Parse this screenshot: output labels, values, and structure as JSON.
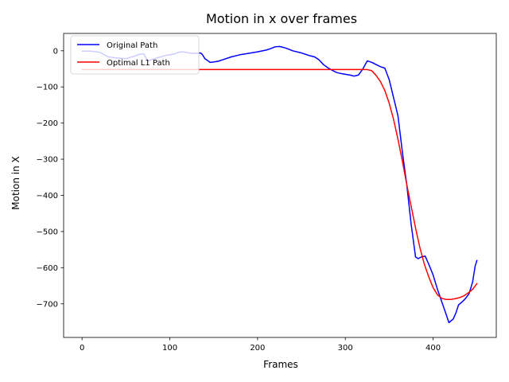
{
  "chart_data": {
    "type": "line",
    "title": "Motion in x over frames",
    "xlabel": "Frames",
    "ylabel": "Motion in X",
    "xlim": [
      -21,
      472
    ],
    "ylim": [
      -793,
      48
    ],
    "xticks": [
      0,
      100,
      200,
      300,
      400
    ],
    "yticks": [
      0,
      -100,
      -200,
      -300,
      -400,
      -500,
      -600,
      -700
    ],
    "grid": false,
    "legend_position": "upper-left",
    "series": [
      {
        "name": "Original Path",
        "color": "#0000ff",
        "points": [
          [
            0,
            -1
          ],
          [
            10,
            -1
          ],
          [
            20,
            -4
          ],
          [
            30,
            -17
          ],
          [
            40,
            -20
          ],
          [
            50,
            -22
          ],
          [
            55,
            -18
          ],
          [
            60,
            -15
          ],
          [
            65,
            -10
          ],
          [
            70,
            -8
          ],
          [
            75,
            -28
          ],
          [
            80,
            -24
          ],
          [
            85,
            -20
          ],
          [
            90,
            -17
          ],
          [
            95,
            -13
          ],
          [
            100,
            -11
          ],
          [
            105,
            -9
          ],
          [
            110,
            -4
          ],
          [
            115,
            -3
          ],
          [
            120,
            -5
          ],
          [
            125,
            -7
          ],
          [
            130,
            -7
          ],
          [
            135,
            -6
          ],
          [
            137,
            -10
          ],
          [
            140,
            -22
          ],
          [
            146,
            -32
          ],
          [
            150,
            -31
          ],
          [
            155,
            -29
          ],
          [
            160,
            -25
          ],
          [
            170,
            -17
          ],
          [
            180,
            -11
          ],
          [
            190,
            -7
          ],
          [
            200,
            -3
          ],
          [
            210,
            2
          ],
          [
            215,
            6
          ],
          [
            220,
            11
          ],
          [
            225,
            12
          ],
          [
            230,
            9
          ],
          [
            235,
            5
          ],
          [
            240,
            0
          ],
          [
            250,
            -6
          ],
          [
            260,
            -14
          ],
          [
            265,
            -17
          ],
          [
            270,
            -25
          ],
          [
            275,
            -38
          ],
          [
            280,
            -47
          ],
          [
            285,
            -54
          ],
          [
            290,
            -60
          ],
          [
            295,
            -63
          ],
          [
            300,
            -65
          ],
          [
            305,
            -67
          ],
          [
            310,
            -70
          ],
          [
            315,
            -67
          ],
          [
            320,
            -50
          ],
          [
            325,
            -28
          ],
          [
            330,
            -32
          ],
          [
            335,
            -38
          ],
          [
            340,
            -44
          ],
          [
            345,
            -48
          ],
          [
            350,
            -80
          ],
          [
            355,
            -130
          ],
          [
            360,
            -180
          ],
          [
            365,
            -280
          ],
          [
            370,
            -370
          ],
          [
            375,
            -480
          ],
          [
            380,
            -570
          ],
          [
            383,
            -575
          ],
          [
            387,
            -570
          ],
          [
            391,
            -568
          ],
          [
            395,
            -590
          ],
          [
            400,
            -620
          ],
          [
            405,
            -660
          ],
          [
            410,
            -695
          ],
          [
            415,
            -730
          ],
          [
            418,
            -752
          ],
          [
            423,
            -742
          ],
          [
            426,
            -725
          ],
          [
            429,
            -703
          ],
          [
            433,
            -695
          ],
          [
            437,
            -685
          ],
          [
            441,
            -672
          ],
          [
            445,
            -640
          ],
          [
            448,
            -595
          ],
          [
            450,
            -580
          ]
        ]
      },
      {
        "name": "Optimal L1 Path",
        "color": "#ff0000",
        "points": [
          [
            0,
            -52
          ],
          [
            100,
            -52
          ],
          [
            200,
            -52
          ],
          [
            300,
            -52
          ],
          [
            320,
            -52
          ],
          [
            325,
            -52
          ],
          [
            330,
            -55
          ],
          [
            335,
            -68
          ],
          [
            340,
            -85
          ],
          [
            345,
            -110
          ],
          [
            350,
            -145
          ],
          [
            355,
            -190
          ],
          [
            360,
            -245
          ],
          [
            365,
            -305
          ],
          [
            370,
            -370
          ],
          [
            375,
            -430
          ],
          [
            380,
            -490
          ],
          [
            385,
            -545
          ],
          [
            390,
            -590
          ],
          [
            395,
            -625
          ],
          [
            400,
            -655
          ],
          [
            405,
            -675
          ],
          [
            410,
            -685
          ],
          [
            415,
            -688
          ],
          [
            420,
            -688
          ],
          [
            425,
            -686
          ],
          [
            430,
            -683
          ],
          [
            435,
            -678
          ],
          [
            440,
            -670
          ],
          [
            445,
            -660
          ],
          [
            450,
            -644
          ]
        ]
      }
    ]
  }
}
